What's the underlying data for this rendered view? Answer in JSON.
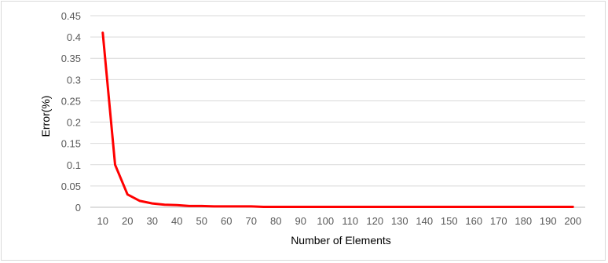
{
  "chart_data": {
    "type": "line",
    "title": "",
    "xlabel": "Number of Elements",
    "ylabel": "Error(%)",
    "x": [
      10,
      15,
      20,
      25,
      30,
      35,
      40,
      45,
      50,
      55,
      60,
      65,
      70,
      75,
      80,
      85,
      90,
      95,
      100,
      105,
      110,
      115,
      120,
      125,
      130,
      135,
      140,
      145,
      150,
      155,
      160,
      165,
      170,
      175,
      180,
      185,
      190,
      195,
      200
    ],
    "x_tick_labels": [
      "10",
      "20",
      "30",
      "40",
      "50",
      "60",
      "70",
      "80",
      "90",
      "100",
      "110",
      "120",
      "130",
      "140",
      "150",
      "160",
      "170",
      "180",
      "190",
      "200"
    ],
    "y_tick_labels": [
      "0",
      "0.05",
      "0.1",
      "0.15",
      "0.2",
      "0.25",
      "0.3",
      "0.35",
      "0.4",
      "0.45"
    ],
    "ylim": [
      0,
      0.45
    ],
    "grid": true,
    "legend": "none",
    "series": [
      {
        "color": "#ff0000",
        "values": [
          0.41,
          0.1,
          0.03,
          0.015,
          0.009,
          0.006,
          0.005,
          0.003,
          0.003,
          0.002,
          0.002,
          0.002,
          0.002,
          0.001,
          0.001,
          0.001,
          0.001,
          0.001,
          0.001,
          0.001,
          0.001,
          0.001,
          0.001,
          0.001,
          0.001,
          0.001,
          0.001,
          0.001,
          0.001,
          0.001,
          0.001,
          0.001,
          0.001,
          0.001,
          0.001,
          0.001,
          0.001,
          0.001,
          0.001
        ]
      }
    ]
  }
}
